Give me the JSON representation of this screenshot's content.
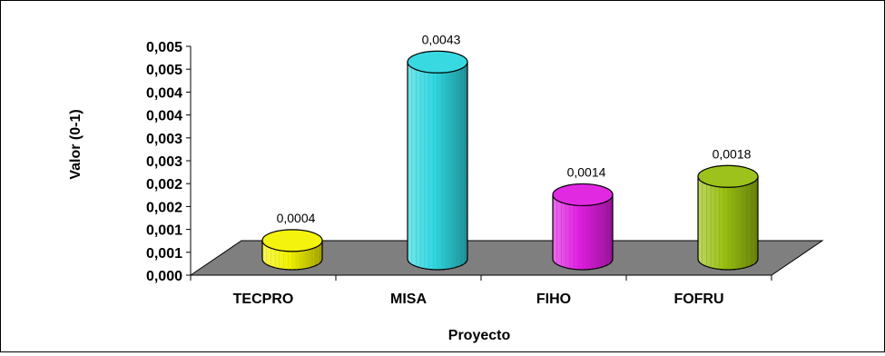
{
  "chart_data": {
    "type": "bar",
    "style": "3d-cylinder",
    "categories": [
      "TECPRO",
      "MISA",
      "FIHO",
      "FOFRU"
    ],
    "values": [
      0.0004,
      0.0043,
      0.0014,
      0.0018
    ],
    "data_labels": [
      "0,0004",
      "0,0043",
      "0,0014",
      "0,0018"
    ],
    "colors": [
      "#f2f200",
      "#2fd7e0",
      "#e01ee0",
      "#98bf10"
    ],
    "floor_color": "#7f7f7f",
    "xlabel": "Proyecto",
    "ylabel": "Valor (0-1)",
    "ylim": [
      0,
      0.005
    ],
    "y_tick_labels": [
      "0,000",
      "0,001",
      "0,001",
      "0,002",
      "0,002",
      "0,003",
      "0,003",
      "0,004",
      "0,004",
      "0,005",
      "0,005"
    ],
    "grid": false,
    "legend": "none"
  }
}
